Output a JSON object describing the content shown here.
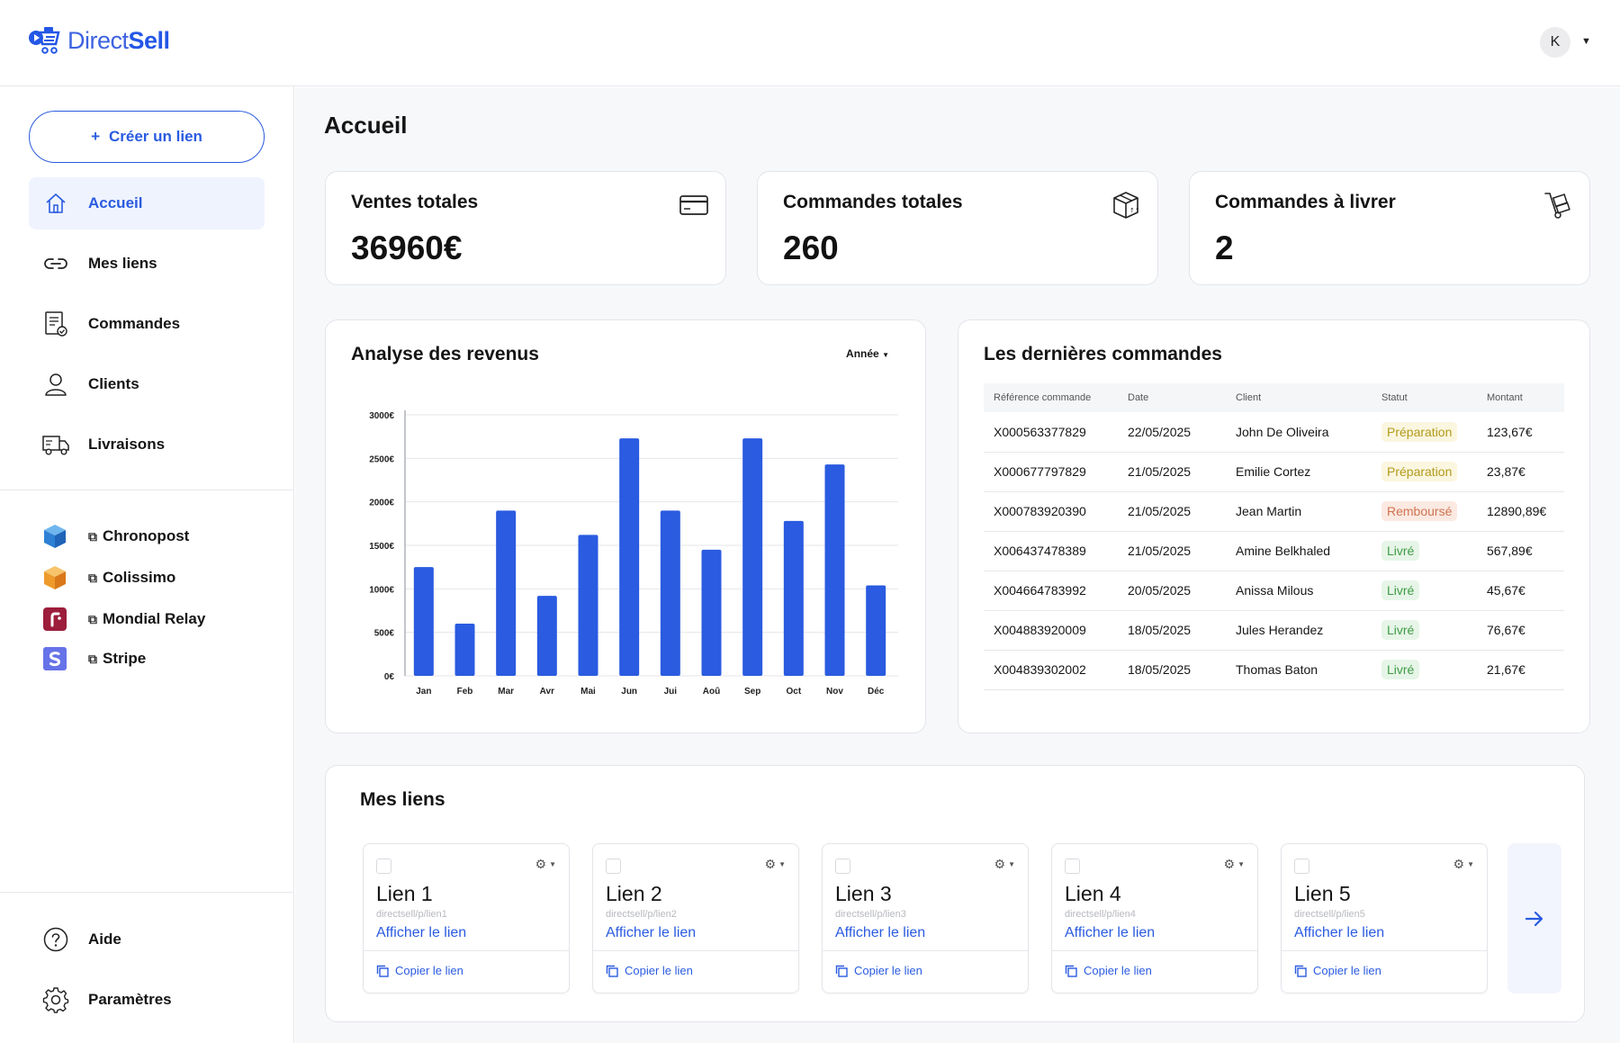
{
  "app": {
    "logo_light": "Direct",
    "logo_bold": "Sell",
    "avatar_initial": "K"
  },
  "colors": {
    "accent": "#2a5be0",
    "bar": "#2a5be0"
  },
  "sidebar": {
    "create_label": "Créer un lien",
    "items": [
      {
        "label": "Accueil",
        "icon": "home-icon",
        "active": true
      },
      {
        "label": "Mes liens",
        "icon": "link-icon"
      },
      {
        "label": "Commandes",
        "icon": "orders-icon"
      },
      {
        "label": "Clients",
        "icon": "user-icon"
      },
      {
        "label": "Livraisons",
        "icon": "truck-icon"
      }
    ],
    "partners": [
      {
        "label": "Chronopost",
        "icon": "chronopost-cube-icon"
      },
      {
        "label": "Colissimo",
        "icon": "colissimo-cube-icon"
      },
      {
        "label": "Mondial Relay",
        "icon": "mondial-relay-icon"
      },
      {
        "label": "Stripe",
        "icon": "stripe-icon"
      }
    ],
    "bottom": [
      {
        "label": "Aide",
        "icon": "help-icon"
      },
      {
        "label": "Paramètres",
        "icon": "settings-icon"
      }
    ]
  },
  "page": {
    "title": "Accueil"
  },
  "stats": [
    {
      "title": "Ventes totales",
      "value": "36960€",
      "icon": "credit-card-icon"
    },
    {
      "title": "Commandes totales",
      "value": "260",
      "icon": "package-icon"
    },
    {
      "title": "Commandes à livrer",
      "value": "2",
      "icon": "hand-truck-icon"
    }
  ],
  "revenue": {
    "title": "Analyse des revenus",
    "period": "Année"
  },
  "chart_data": {
    "type": "bar",
    "categories": [
      "Jan",
      "Feb",
      "Mar",
      "Avr",
      "Mai",
      "Jun",
      "Jui",
      "Aoû",
      "Sep",
      "Oct",
      "Nov",
      "Déc"
    ],
    "values": [
      1250,
      600,
      1900,
      920,
      1620,
      2730,
      1900,
      1450,
      2730,
      1780,
      2430,
      1040
    ],
    "ylim": [
      0,
      3000
    ],
    "yticks": [
      "0€",
      "500€",
      "1000€",
      "1500€",
      "2000€",
      "2500€",
      "3000€"
    ],
    "ytick_values": [
      0,
      500,
      1000,
      1500,
      2000,
      2500,
      3000
    ],
    "grid": true
  },
  "orders": {
    "title": "Les dernières commandes",
    "columns": [
      "Référence commande",
      "Date",
      "Client",
      "Statut",
      "Montant"
    ],
    "rows": [
      {
        "ref": "X000563377829",
        "date": "22/05/2025",
        "client": "John De Oliveira",
        "status": "Préparation",
        "status_type": "prep",
        "amount": "123,67€"
      },
      {
        "ref": "X000677797829",
        "date": "21/05/2025",
        "client": "Emilie Cortez",
        "status": "Préparation",
        "status_type": "prep",
        "amount": "23,87€"
      },
      {
        "ref": "X000783920390",
        "date": "21/05/2025",
        "client": "Jean Martin",
        "status": "Remboursé",
        "status_type": "remb",
        "amount": "12890,89€"
      },
      {
        "ref": "X006437478389",
        "date": "21/05/2025",
        "client": "Amine Belkhaled",
        "status": "Livré",
        "status_type": "livre",
        "amount": "567,89€"
      },
      {
        "ref": "X004664783992",
        "date": "20/05/2025",
        "client": "Anissa Milous",
        "status": "Livré",
        "status_type": "livre",
        "amount": "45,67€"
      },
      {
        "ref": "X004883920009",
        "date": "18/05/2025",
        "client": "Jules Herandez",
        "status": "Livré",
        "status_type": "livre",
        "amount": "76,67€"
      },
      {
        "ref": "X004839302002",
        "date": "18/05/2025",
        "client": "Thomas Baton",
        "status": "Livré",
        "status_type": "livre",
        "amount": "21,67€"
      }
    ]
  },
  "links": {
    "title": "Mes liens",
    "show_label": "Afficher le lien",
    "copy_label": "Copier le lien",
    "items": [
      {
        "name": "Lien 1",
        "url": "directsell/p/lien1"
      },
      {
        "name": "Lien 2",
        "url": "directsell/p/lien2"
      },
      {
        "name": "Lien 3",
        "url": "directsell/p/lien3"
      },
      {
        "name": "Lien 4",
        "url": "directsell/p/lien4"
      },
      {
        "name": "Lien 5",
        "url": "directsell/p/lien5"
      }
    ]
  }
}
